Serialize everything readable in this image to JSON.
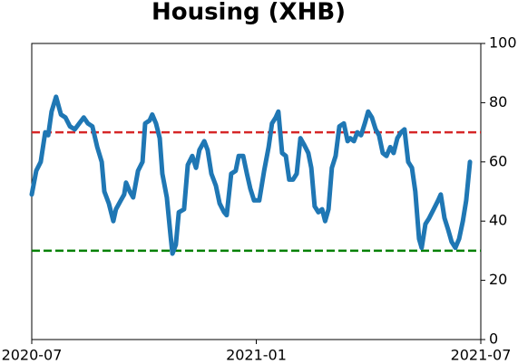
{
  "chart_data": {
    "type": "line",
    "title": "Housing (XHB)",
    "xlim": [
      0,
      12
    ],
    "xticks": [
      {
        "value": 0,
        "label": "2020-07"
      },
      {
        "value": 6,
        "label": "2021-01"
      },
      {
        "value": 12,
        "label": "2021-07"
      }
    ],
    "ylim": [
      0,
      100
    ],
    "yticks": [
      0,
      20,
      40,
      60,
      80,
      100
    ],
    "y_axis_side": "right",
    "hlines": [
      {
        "value": 70,
        "color": "#d62728"
      },
      {
        "value": 30,
        "color": "#008000"
      }
    ],
    "series": [
      {
        "color": "#1f77b4",
        "x": [
          0,
          0.12,
          0.24,
          0.36,
          0.44,
          0.53,
          0.65,
          0.78,
          0.9,
          1.02,
          1.15,
          1.27,
          1.39,
          1.5,
          1.62,
          1.75,
          1.87,
          1.94,
          2.06,
          2.18,
          2.25,
          2.38,
          2.47,
          2.52,
          2.62,
          2.71,
          2.84,
          2.96,
          3.03,
          3.15,
          3.22,
          3.32,
          3.42,
          3.49,
          3.61,
          3.71,
          3.76,
          3.85,
          3.93,
          4.07,
          4.17,
          4.29,
          4.39,
          4.48,
          4.61,
          4.7,
          4.8,
          4.92,
          5.02,
          5.14,
          5.21,
          5.33,
          5.45,
          5.53,
          5.65,
          5.75,
          5.84,
          5.94,
          6.08,
          6.21,
          6.33,
          6.42,
          6.52,
          6.59,
          6.69,
          6.79,
          6.88,
          6.98,
          7.08,
          7.18,
          7.27,
          7.39,
          7.47,
          7.56,
          7.66,
          7.76,
          7.84,
          7.93,
          8.02,
          8.12,
          8.22,
          8.34,
          8.44,
          8.51,
          8.61,
          8.7,
          8.8,
          8.9,
          8.99,
          9.09,
          9.19,
          9.28,
          9.38,
          9.48,
          9.58,
          9.67,
          9.77,
          9.87,
          9.96,
          10.06,
          10.16,
          10.25,
          10.35,
          10.42,
          10.52,
          10.62,
          10.74,
          10.86,
          10.93,
          11.03,
          11.13,
          11.22,
          11.32,
          11.42,
          11.52,
          11.61,
          11.71
        ],
        "values": [
          49,
          57,
          60,
          70,
          69,
          77,
          82,
          76,
          75,
          72,
          71,
          73,
          75,
          73,
          72,
          65,
          60,
          50,
          46,
          40,
          44,
          47,
          49,
          53,
          50,
          48,
          57,
          60,
          73,
          74,
          76,
          73,
          68,
          56,
          48,
          35,
          29,
          32,
          43,
          44,
          59,
          62,
          58,
          64,
          67,
          64,
          56,
          52,
          46,
          43,
          42,
          56,
          57,
          62,
          62,
          56,
          51,
          47,
          47,
          57,
          65,
          73,
          75,
          77,
          63,
          62,
          54,
          54,
          56,
          68,
          66,
          63,
          58,
          45,
          43,
          44,
          40,
          44,
          58,
          62,
          72,
          73,
          67,
          68,
          67,
          70,
          69,
          73,
          77,
          75,
          71,
          69,
          63,
          62,
          65,
          63,
          68,
          70,
          71,
          60,
          58,
          50,
          34,
          31,
          39,
          41,
          44,
          47,
          49,
          41,
          37,
          33,
          31,
          34,
          40,
          47,
          60
        ]
      }
    ]
  }
}
